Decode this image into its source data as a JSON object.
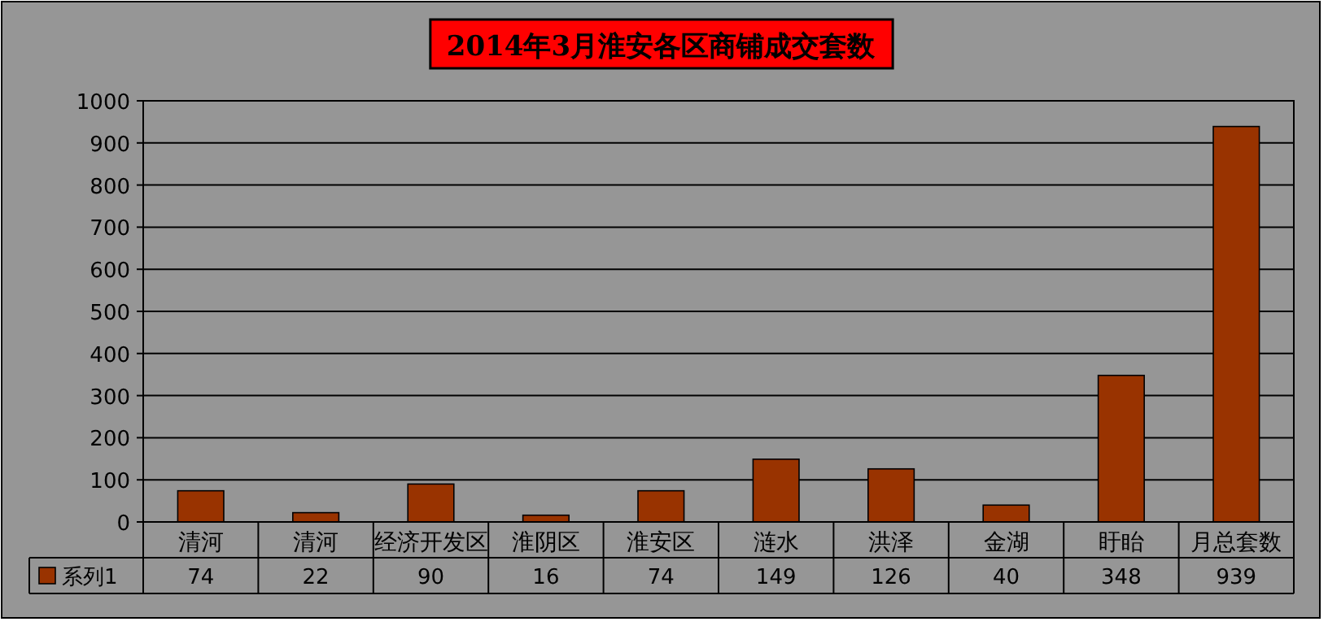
{
  "chart_data": {
    "type": "bar",
    "title": "2014年3月淮安各区商铺成交套数",
    "categories": [
      "清河",
      "清河",
      "经济开发区",
      "淮阴区",
      "淮安区",
      "涟水",
      "洪泽",
      "金湖",
      "盱眙",
      "月总套数"
    ],
    "series": [
      {
        "name": "系列1",
        "color": "#993300",
        "values": [
          74,
          22,
          90,
          16,
          74,
          149,
          126,
          40,
          348,
          939
        ]
      }
    ],
    "ylim": [
      0,
      1000
    ],
    "yticks": [
      0,
      100,
      200,
      300,
      400,
      500,
      600,
      700,
      800,
      900,
      1000
    ],
    "grid": "y",
    "data_labels": true,
    "legend": "bottom"
  }
}
